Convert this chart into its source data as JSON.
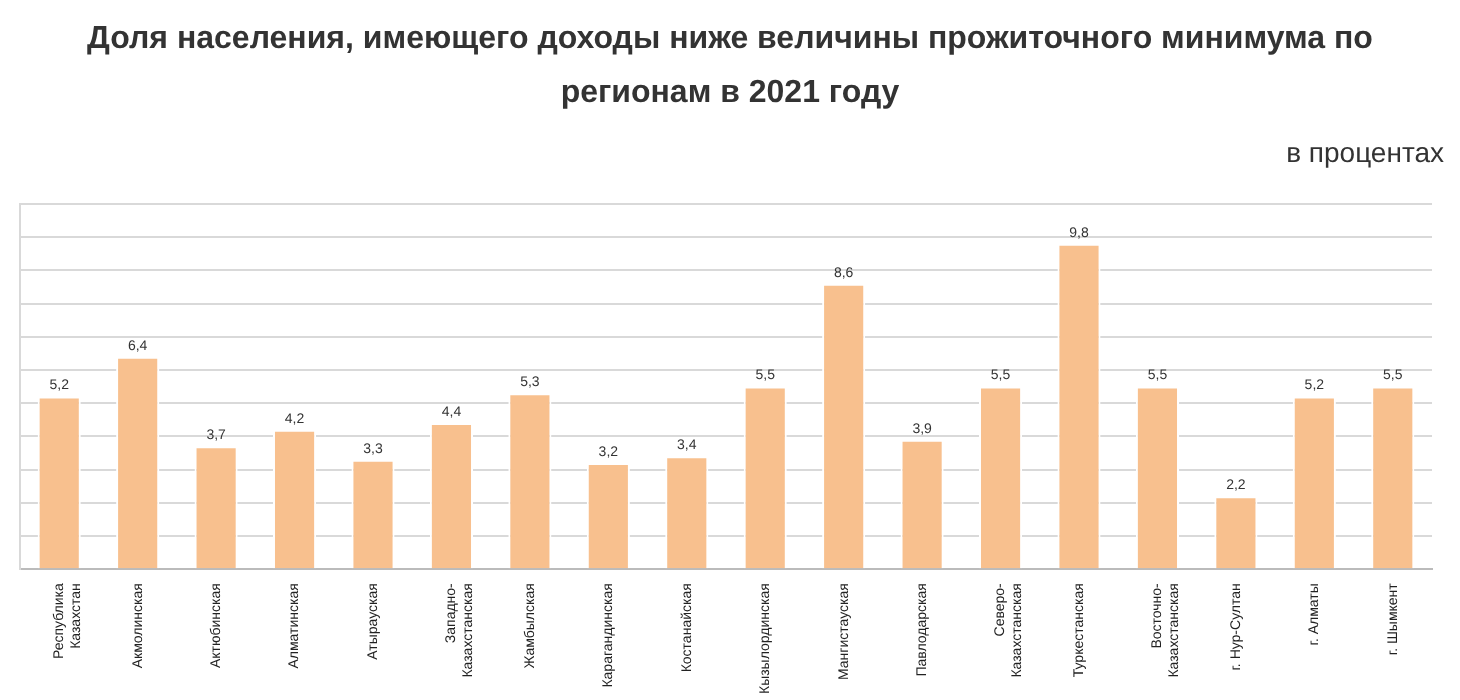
{
  "chart_data": {
    "type": "bar",
    "title": "Доля населения, имеющего доходы ниже величины прожиточного минимума по регионам в 2021 году",
    "subtitle": "в процентах",
    "categories": [
      "Республика Казахстан",
      "Акмолинская",
      "Актюбинская",
      "Алматинская",
      "Атырауская",
      "Западно-Казахстанская",
      "Жамбылская",
      "Карагандинская",
      "Костанайская",
      "Кызылординская",
      "Мангистауская",
      "Павлодарская",
      "Северо-Казахстанская",
      "Туркестанская",
      "Восточно-Казахстанская",
      "г. Нур-Султан",
      "г. Алматы",
      "г. Шымкент"
    ],
    "values": [
      5.2,
      6.4,
      3.7,
      4.2,
      3.3,
      4.4,
      5.3,
      3.2,
      3.4,
      5.5,
      8.6,
      3.9,
      5.5,
      9.8,
      5.5,
      2.2,
      5.2,
      5.5
    ],
    "value_labels": [
      "5,2",
      "6,4",
      "3,7",
      "4,2",
      "3,3",
      "4,4",
      "5,3",
      "3,2",
      "3,4",
      "5,5",
      "8,6",
      "3,9",
      "5,5",
      "9,8",
      "5,5",
      "2,2",
      "5,2",
      "5,5"
    ],
    "color": "#f8c08e",
    "ylim": [
      0,
      11
    ],
    "yticks": [
      {
        "value": 0,
        "label": null
      },
      {
        "value": 1,
        "label": null
      },
      {
        "value": 2,
        "label": null
      },
      {
        "value": 3,
        "label": null
      },
      {
        "value": 4,
        "label": null
      },
      {
        "value": 5,
        "label": null
      },
      {
        "value": 6,
        "label": null
      },
      {
        "value": 7,
        "label": null
      },
      {
        "value": 8,
        "label": null
      },
      {
        "value": 9,
        "label": null
      },
      {
        "value": 10,
        "label": null
      },
      {
        "value": 11,
        "label": null
      }
    ],
    "tick_labels": "x",
    "grid": "y",
    "legend": false
  }
}
